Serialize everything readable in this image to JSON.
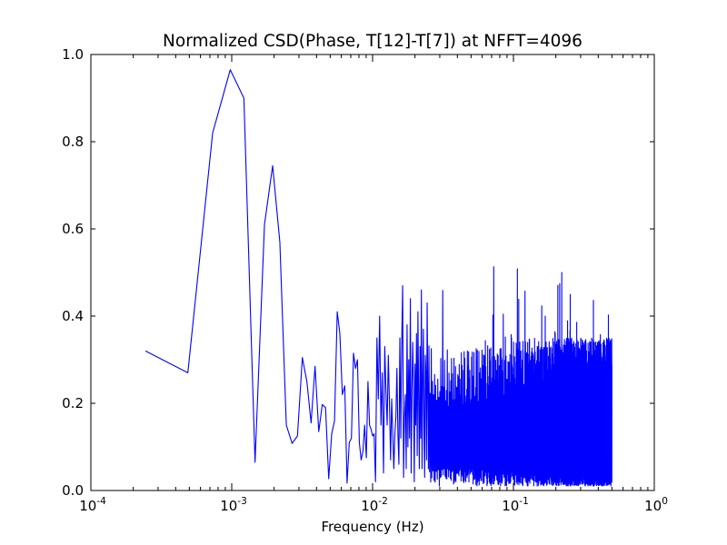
{
  "chart_data": {
    "type": "line",
    "title": "Normalized CSD(Phase, T[12]-T[7]) at NFFT=4096",
    "xlabel": "Frequency (Hz)",
    "ylabel": "",
    "xscale": "log",
    "xlim": [
      0.0001,
      1
    ],
    "ylim": [
      0.0,
      1.0
    ],
    "grid": false,
    "x_ticks": [
      {
        "value": 0.0001,
        "base": "10",
        "exp": "-4"
      },
      {
        "value": 0.001,
        "base": "10",
        "exp": "-3"
      },
      {
        "value": 0.01,
        "base": "10",
        "exp": "-2"
      },
      {
        "value": 0.1,
        "base": "10",
        "exp": "-1"
      },
      {
        "value": 1,
        "base": "10",
        "exp": "0"
      }
    ],
    "y_ticks": [
      "0.0",
      "0.2",
      "0.4",
      "0.6",
      "0.8",
      "1.0"
    ],
    "y_tick_values": [
      0.0,
      0.2,
      0.4,
      0.6,
      0.8,
      1.0
    ],
    "series": [
      {
        "color": "#0000ff",
        "f0": 0.000244,
        "df": 0.000244,
        "n": 2049,
        "values_leading": [
          0.32,
          0.27,
          0.82,
          0.965,
          0.9,
          0.065,
          0.61,
          0.745,
          0.57,
          0.15,
          0.108,
          0.125,
          0.305,
          0.25,
          0.155,
          0.285,
          0.135,
          0.197,
          0.19,
          0.027,
          0.13,
          0.16,
          0.41,
          0.36,
          0.22,
          0.24,
          0.017,
          0.11,
          0.12,
          0.315,
          0.28,
          0.3,
          0.11,
          0.07,
          0.09,
          0.15,
          0.075,
          0.25,
          0.15,
          0.14,
          0.125,
          0.13,
          0.02,
          0.35,
          0.21,
          0.4,
          0.15,
          0.27,
          0.04,
          0.33,
          0.23,
          0.15,
          0.31,
          0.2,
          0.07,
          0.21,
          0.13,
          0.05,
          0.13,
          0.17,
          0.28,
          0.13,
          0.06,
          0.35,
          0.12,
          0.34,
          0.47,
          0.03,
          0.17,
          0.22,
          0.05,
          0.38,
          0.1,
          0.3,
          0.12,
          0.44,
          0.04,
          0.23,
          0.34,
          0.24,
          0.02,
          0.29,
          0.15,
          0.36,
          0.08,
          0.41,
          0.21,
          0.05,
          0.33,
          0.12,
          0.46,
          0.05,
          0.25,
          0.37,
          0.14,
          0.03,
          0.31,
          0.27,
          0.07,
          0.43
        ],
        "tail_envelope": {
          "min_low": 0.01,
          "min_high": 0.05,
          "max_typical": 0.35,
          "max_peak": 0.52
        }
      }
    ]
  }
}
